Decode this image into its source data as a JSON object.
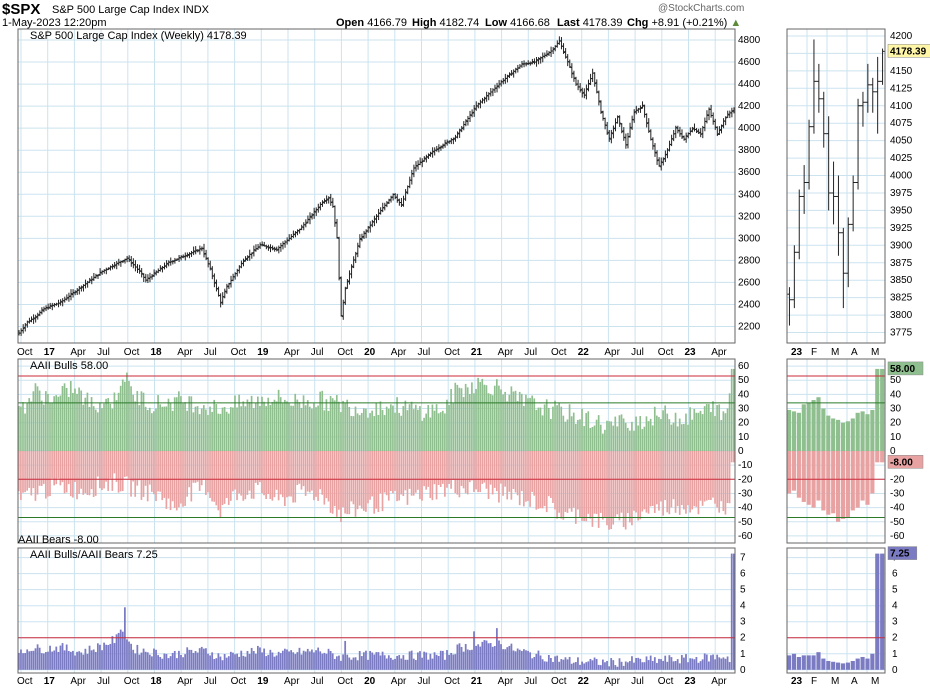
{
  "header": {
    "symbol": "$SPX",
    "name": "S&P 500 Large Cap Index",
    "exchange": "INDX",
    "datetime": "1-May-2023 12:20pm",
    "watermark": "@StockCharts.com",
    "quote": [
      {
        "label": "Open",
        "value": "4166.79"
      },
      {
        "label": "High",
        "value": "4182.74"
      },
      {
        "label": "Low",
        "value": "4166.68"
      },
      {
        "label": "Last",
        "value": "4178.39"
      },
      {
        "label": "Chg",
        "value": "+8.91 (+0.21%)"
      }
    ]
  },
  "colors": {
    "grid": "#cbe3ef",
    "border": "#666666",
    "bar": "#222222",
    "bulls_fill": "#8fbf8f",
    "bears_fill": "#e8a2a2",
    "ratio_fill": "#7b7bc4",
    "red_line": "#cc2a3a",
    "green_line": "#2a7a2a",
    "label_box": "#fff6a8"
  },
  "chart_data": [
    {
      "type": "ohlc",
      "title": "S&P 500 Large Cap Index (Weekly) 4178.39",
      "last_label": "4178.39",
      "ylim": [
        2050,
        4900
      ],
      "y_ticks": [
        2200,
        2400,
        2600,
        2800,
        3000,
        3200,
        3400,
        3600,
        3800,
        4000,
        4200,
        4400,
        4600,
        4800
      ],
      "x_ticks": [
        "Oct",
        "17",
        "Apr",
        "Jul",
        "Oct",
        "18",
        "Apr",
        "Jul",
        "Oct",
        "19",
        "Apr",
        "Jul",
        "Oct",
        "20",
        "Apr",
        "Jul",
        "Oct",
        "21",
        "Apr",
        "Jul",
        "Oct",
        "22",
        "Apr",
        "Jul",
        "Oct",
        "23",
        "Apr"
      ],
      "x_bold": [
        1,
        5,
        9,
        13,
        17,
        21,
        25
      ],
      "close_anchors": [
        [
          0,
          2140
        ],
        [
          4,
          2240
        ],
        [
          8,
          2290
        ],
        [
          12,
          2360
        ],
        [
          20,
          2420
        ],
        [
          30,
          2560
        ],
        [
          40,
          2700
        ],
        [
          52,
          2820
        ],
        [
          58,
          2700
        ],
        [
          61,
          2620
        ],
        [
          72,
          2780
        ],
        [
          88,
          2910
        ],
        [
          92,
          2720
        ],
        [
          97,
          2420
        ],
        [
          100,
          2560
        ],
        [
          108,
          2800
        ],
        [
          116,
          2940
        ],
        [
          124,
          2900
        ],
        [
          136,
          3100
        ],
        [
          146,
          3330
        ],
        [
          149,
          3370
        ],
        [
          151,
          3290
        ],
        [
          153,
          3000
        ],
        [
          155,
          2290
        ],
        [
          157,
          2550
        ],
        [
          164,
          2990
        ],
        [
          172,
          3200
        ],
        [
          180,
          3400
        ],
        [
          184,
          3300
        ],
        [
          190,
          3640
        ],
        [
          200,
          3800
        ],
        [
          210,
          3920
        ],
        [
          220,
          4200
        ],
        [
          232,
          4420
        ],
        [
          242,
          4580
        ],
        [
          248,
          4600
        ],
        [
          256,
          4700
        ],
        [
          260,
          4790
        ],
        [
          264,
          4600
        ],
        [
          268,
          4400
        ],
        [
          272,
          4300
        ],
        [
          276,
          4500
        ],
        [
          280,
          4150
        ],
        [
          284,
          3900
        ],
        [
          288,
          4100
        ],
        [
          292,
          3850
        ],
        [
          296,
          4150
        ],
        [
          300,
          4200
        ],
        [
          304,
          3900
        ],
        [
          308,
          3650
        ],
        [
          312,
          3800
        ],
        [
          316,
          4000
        ],
        [
          320,
          3900
        ],
        [
          324,
          4000
        ],
        [
          328,
          3950
        ],
        [
          332,
          4170
        ],
        [
          336,
          3950
        ],
        [
          340,
          4100
        ],
        [
          344,
          4178
        ]
      ]
    },
    {
      "type": "ohlc",
      "title": "Recent",
      "ylim": [
        3760,
        4210
      ],
      "y_ticks": [
        3775,
        3800,
        3825,
        3850,
        3875,
        3900,
        3925,
        3950,
        3975,
        4000,
        4025,
        4050,
        4075,
        4100,
        4125,
        4150,
        4175,
        4200
      ],
      "x_ticks": [
        "23",
        "F",
        "M",
        "A",
        "M"
      ],
      "x_bold": [
        0
      ],
      "bars": [
        [
          3830,
          3840,
          3785,
          3822
        ],
        [
          3822,
          3900,
          3810,
          3890
        ],
        [
          3890,
          3980,
          3880,
          3970
        ],
        [
          3970,
          4015,
          3945,
          3990
        ],
        [
          3990,
          4080,
          3980,
          4070
        ],
        [
          4070,
          4195,
          4060,
          4135
        ],
        [
          4135,
          4160,
          4090,
          4110
        ],
        [
          4110,
          4120,
          4040,
          4060
        ],
        [
          4060,
          4085,
          3950,
          3975
        ],
        [
          3975,
          4020,
          3930,
          3970
        ],
        [
          3970,
          4000,
          3885,
          3918
        ],
        [
          3918,
          3925,
          3810,
          3860
        ],
        [
          3860,
          3940,
          3840,
          3930
        ],
        [
          3930,
          4000,
          3920,
          3990
        ],
        [
          3990,
          4110,
          3980,
          4100
        ],
        [
          4100,
          4120,
          4070,
          4105
        ],
        [
          4105,
          4160,
          4090,
          4130
        ],
        [
          4130,
          4140,
          4090,
          4120
        ],
        [
          4120,
          4170,
          4060,
          4135
        ],
        [
          4135,
          4182,
          4130,
          4178
        ]
      ]
    },
    {
      "type": "bar",
      "title": "AAII Bulls 58.00",
      "series_name": "AAII Bulls",
      "last": 58,
      "bears_title": "AAII Bears -8.00",
      "bears_last": -8,
      "ylim": [
        -65,
        65
      ],
      "y_ticks": [
        60,
        50,
        40,
        30,
        20,
        10,
        0,
        -10,
        -20,
        -30,
        -40,
        -50,
        -60
      ],
      "red_lines": [
        53,
        -20
      ],
      "green_lines": [
        34,
        -47
      ],
      "bulls_anchors": [
        [
          0,
          28
        ],
        [
          8,
          42
        ],
        [
          18,
          36
        ],
        [
          25,
          45
        ],
        [
          35,
          33
        ],
        [
          46,
          36
        ],
        [
          50,
          55
        ],
        [
          55,
          40
        ],
        [
          65,
          33
        ],
        [
          78,
          36
        ],
        [
          90,
          32
        ],
        [
          95,
          30
        ],
        [
          110,
          34
        ],
        [
          122,
          38
        ],
        [
          132,
          35
        ],
        [
          145,
          36
        ],
        [
          155,
          33
        ],
        [
          165,
          30
        ],
        [
          180,
          32
        ],
        [
          195,
          28
        ],
        [
          205,
          30
        ],
        [
          210,
          42
        ],
        [
          220,
          48
        ],
        [
          232,
          45
        ],
        [
          240,
          36
        ],
        [
          250,
          32
        ],
        [
          260,
          28
        ],
        [
          268,
          25
        ],
        [
          275,
          22
        ],
        [
          282,
          18
        ],
        [
          290,
          20
        ],
        [
          300,
          22
        ],
        [
          310,
          26
        ],
        [
          320,
          23
        ],
        [
          330,
          28
        ],
        [
          336,
          32
        ],
        [
          338,
          22
        ],
        [
          341,
          30
        ],
        [
          343,
          58
        ],
        [
          344,
          58
        ]
      ],
      "bears_anchors": [
        [
          0,
          -35
        ],
        [
          10,
          -28
        ],
        [
          20,
          -25
        ],
        [
          30,
          -28
        ],
        [
          45,
          -22
        ],
        [
          60,
          -28
        ],
        [
          70,
          -33
        ],
        [
          75,
          -42
        ],
        [
          80,
          -32
        ],
        [
          90,
          -25
        ],
        [
          97,
          -42
        ],
        [
          105,
          -30
        ],
        [
          115,
          -28
        ],
        [
          125,
          -35
        ],
        [
          135,
          -30
        ],
        [
          145,
          -30
        ],
        [
          155,
          -45
        ],
        [
          165,
          -40
        ],
        [
          178,
          -35
        ],
        [
          190,
          -32
        ],
        [
          200,
          -28
        ],
        [
          210,
          -26
        ],
        [
          222,
          -27
        ],
        [
          232,
          -30
        ],
        [
          244,
          -34
        ],
        [
          255,
          -38
        ],
        [
          262,
          -46
        ],
        [
          270,
          -44
        ],
        [
          278,
          -49
        ],
        [
          286,
          -52
        ],
        [
          294,
          -48
        ],
        [
          302,
          -42
        ],
        [
          310,
          -40
        ],
        [
          320,
          -38
        ],
        [
          330,
          -40
        ],
        [
          336,
          -35
        ],
        [
          339,
          -42
        ],
        [
          342,
          -30
        ],
        [
          343,
          -8
        ],
        [
          344,
          -8
        ]
      ],
      "recent_bulls": [
        29,
        28,
        27,
        33,
        34,
        36,
        38,
        30,
        25,
        23,
        22,
        20,
        21,
        23,
        27,
        28,
        26,
        29,
        58,
        58
      ],
      "recent_bears": [
        -30,
        -28,
        -33,
        -36,
        -38,
        -40,
        -35,
        -42,
        -45,
        -44,
        -50,
        -48,
        -47,
        -42,
        -40,
        -35,
        -38,
        -30,
        -8,
        -8
      ]
    },
    {
      "type": "bar",
      "title": "AAII Bulls/AAII Bears 7.25",
      "series_name": "AAII Bulls/AAII Bears",
      "last": 7.25,
      "ylim": [
        -0.2,
        7.6
      ],
      "y_ticks": [
        0,
        1,
        2,
        3,
        4,
        5,
        6,
        7
      ],
      "red_lines": [
        2
      ],
      "ratio_anchors": [
        [
          0,
          0.9
        ],
        [
          5,
          1.4
        ],
        [
          10,
          1.3
        ],
        [
          20,
          1.4
        ],
        [
          30,
          1.1
        ],
        [
          40,
          1.5
        ],
        [
          48,
          2.0
        ],
        [
          50,
          2.6
        ],
        [
          55,
          1.3
        ],
        [
          65,
          1.1
        ],
        [
          72,
          0.9
        ],
        [
          80,
          1.1
        ],
        [
          90,
          1.2
        ],
        [
          97,
          0.8
        ],
        [
          105,
          1.0
        ],
        [
          115,
          1.2
        ],
        [
          125,
          1.0
        ],
        [
          135,
          1.1
        ],
        [
          145,
          1.2
        ],
        [
          155,
          0.8
        ],
        [
          165,
          0.9
        ],
        [
          175,
          0.9
        ],
        [
          185,
          0.9
        ],
        [
          195,
          0.9
        ],
        [
          205,
          0.9
        ],
        [
          212,
          1.4
        ],
        [
          220,
          1.5
        ],
        [
          230,
          1.7
        ],
        [
          240,
          1.2
        ],
        [
          250,
          0.9
        ],
        [
          258,
          0.7
        ],
        [
          266,
          0.55
        ],
        [
          275,
          0.5
        ],
        [
          285,
          0.45
        ],
        [
          295,
          0.55
        ],
        [
          305,
          0.6
        ],
        [
          315,
          0.65
        ],
        [
          325,
          0.7
        ],
        [
          335,
          0.8
        ],
        [
          340,
          0.85
        ],
        [
          342,
          0.7
        ],
        [
          343,
          7.25
        ],
        [
          344,
          7.25
        ]
      ],
      "ratio_spikes": [
        [
          51,
          3.9
        ],
        [
          48,
          2.3
        ],
        [
          157,
          1.8
        ],
        [
          219,
          2.4
        ],
        [
          230,
          2.6
        ]
      ],
      "recent_ratio": [
        0.9,
        1.0,
        0.8,
        0.9,
        0.9,
        0.9,
        1.1,
        0.7,
        0.55,
        0.5,
        0.45,
        0.4,
        0.45,
        0.55,
        0.7,
        0.8,
        0.7,
        1.0,
        7.25,
        7.25
      ]
    }
  ]
}
